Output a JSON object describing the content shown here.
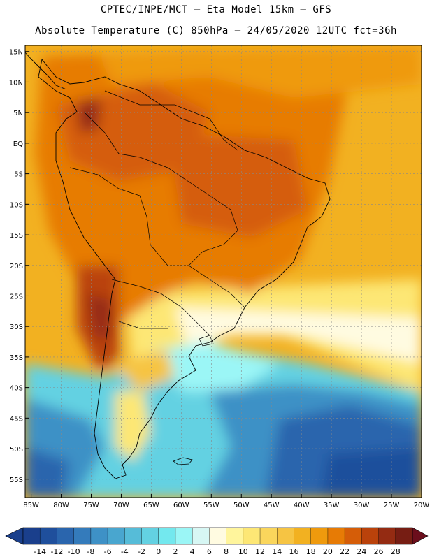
{
  "header": {
    "line1": "CPTEC/INPE/MCT –  Eta Model 15km – GFS",
    "line2": "Absolute Temperature (C) 850hPa – 24/05/2020 12UTC fct=36h"
  },
  "map": {
    "lat_labels": [
      "15N",
      "10N",
      "5N",
      "EQ",
      "5S",
      "10S",
      "15S",
      "20S",
      "25S",
      "30S",
      "35S",
      "40S",
      "45S",
      "50S",
      "55S"
    ],
    "lon_labels": [
      "85W",
      "80W",
      "75W",
      "70W",
      "65W",
      "60W",
      "55W",
      "50W",
      "45W",
      "40W",
      "35W",
      "30W",
      "25W",
      "20W"
    ],
    "lat_range": [
      -58,
      16
    ],
    "lon_range": [
      -86,
      -20
    ]
  },
  "colorbar": {
    "labels": [
      "-14",
      "-12",
      "-10",
      "-8",
      "-6",
      "-4",
      "-2",
      "0",
      "2",
      "4",
      "6",
      "8",
      "10",
      "12",
      "14",
      "16",
      "18",
      "20",
      "22",
      "24",
      "26",
      "28"
    ],
    "colors": [
      "#1a3f8c",
      "#1f4f9c",
      "#2a65ad",
      "#347bbb",
      "#3e91c6",
      "#49a6cf",
      "#56bcd8",
      "#63d1e2",
      "#73e8ee",
      "#9bf6f6",
      "#d7f7f4",
      "#fffbe1",
      "#fff59c",
      "#fde775",
      "#fad65c",
      "#f6c443",
      "#f2b121",
      "#ef9a0d",
      "#e77b05",
      "#d55d08",
      "#ba420b",
      "#942b12",
      "#761d13"
    ]
  }
}
